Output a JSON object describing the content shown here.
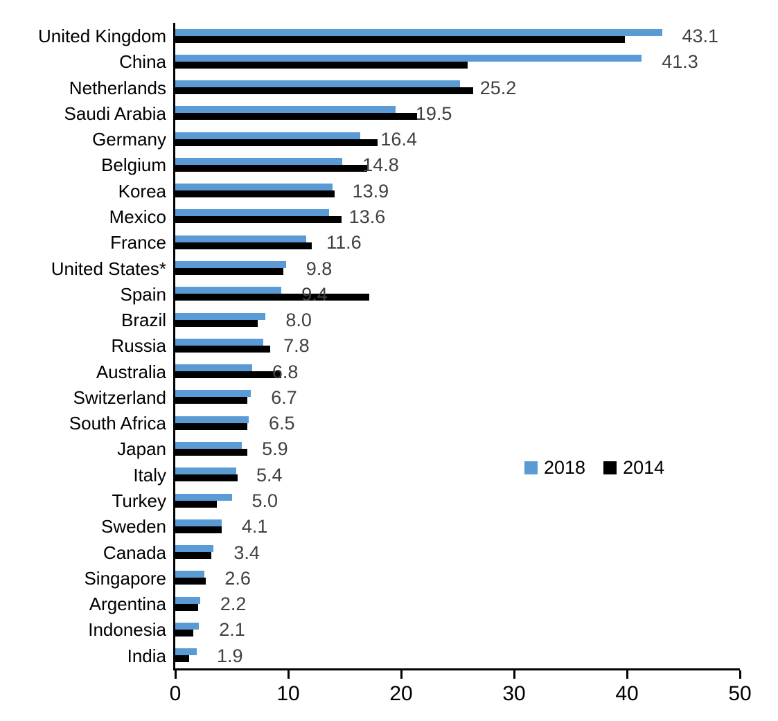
{
  "chart_data": {
    "type": "bar",
    "orientation": "horizontal",
    "title": "",
    "xlabel": "",
    "ylabel": "",
    "categories": [
      "United Kingdom",
      "China",
      "Netherlands",
      "Saudi Arabia",
      "Germany",
      "Belgium",
      "Korea",
      "Mexico",
      "France",
      "United States*",
      "Spain",
      "Brazil",
      "Russia",
      "Australia",
      "Switzerland",
      "South Africa",
      "Japan",
      "Italy",
      "Turkey",
      "Sweden",
      "Canada",
      "Singapore",
      "Argentina",
      "Indonesia",
      "India"
    ],
    "series": [
      {
        "name": "2018",
        "color": "#5B9BD5",
        "values": [
          43.1,
          41.3,
          25.2,
          19.5,
          16.4,
          14.8,
          13.9,
          13.6,
          11.6,
          9.8,
          9.4,
          8.0,
          7.8,
          6.8,
          6.7,
          6.5,
          5.9,
          5.4,
          5.0,
          4.1,
          3.4,
          2.6,
          2.2,
          2.1,
          1.9
        ]
      },
      {
        "name": "2014",
        "color": "#000000",
        "values": [
          39.8,
          25.9,
          26.4,
          21.4,
          17.9,
          17.0,
          14.1,
          14.7,
          12.1,
          9.6,
          17.2,
          7.3,
          8.4,
          9.4,
          6.4,
          6.4,
          6.4,
          5.5,
          3.7,
          4.1,
          3.2,
          2.7,
          2.0,
          1.6,
          1.2
        ]
      }
    ],
    "value_labels": [
      "43.1",
      "41.3",
      "25.2",
      "19.5",
      "16.4",
      "14.8",
      "13.9",
      "13.6",
      "11.6",
      "9.8",
      "9.4",
      "8.0",
      "7.8",
      "6.8",
      "6.7",
      "6.5",
      "5.9",
      "5.4",
      "5.0",
      "4.1",
      "3.4",
      "2.6",
      "2.2",
      "2.1",
      "1.9"
    ],
    "value_labels_source_series": "2018",
    "value_label_color": "#404040",
    "xlim": [
      0,
      50
    ],
    "xticks": [
      "0",
      "10",
      "20",
      "30",
      "40",
      "50"
    ],
    "grid": false,
    "legend": {
      "position": "center-right",
      "items": [
        {
          "label": "2018",
          "color": "#5B9BD5"
        },
        {
          "label": "2014",
          "color": "#000000"
        }
      ]
    }
  },
  "colors": {
    "background": "#FFFFFF",
    "axis": "#000000",
    "bar_2018": "#5B9BD5",
    "bar_2014": "#000000",
    "value_label": "#404040"
  }
}
